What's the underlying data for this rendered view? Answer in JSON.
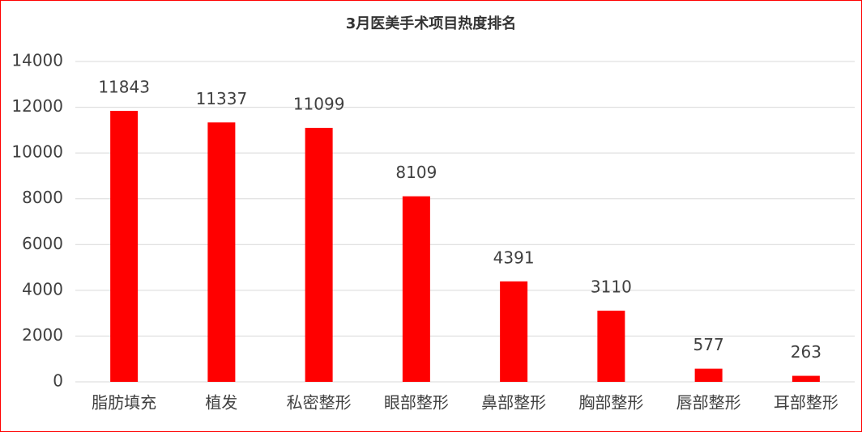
{
  "chart_data": {
    "type": "bar",
    "title": "3月医美手术项目热度排名",
    "categories": [
      "脂肪填充",
      "植发",
      "私密整形",
      "眼部整形",
      "鼻部整形",
      "胸部整形",
      "唇部整形",
      "耳部整形"
    ],
    "values": [
      11843,
      11337,
      11099,
      8109,
      4391,
      3110,
      577,
      263
    ],
    "color": "#ff0000",
    "ylim": [
      0,
      14000
    ],
    "yticks": [
      0,
      2000,
      4000,
      6000,
      8000,
      10000,
      12000,
      14000
    ],
    "grid": true
  }
}
